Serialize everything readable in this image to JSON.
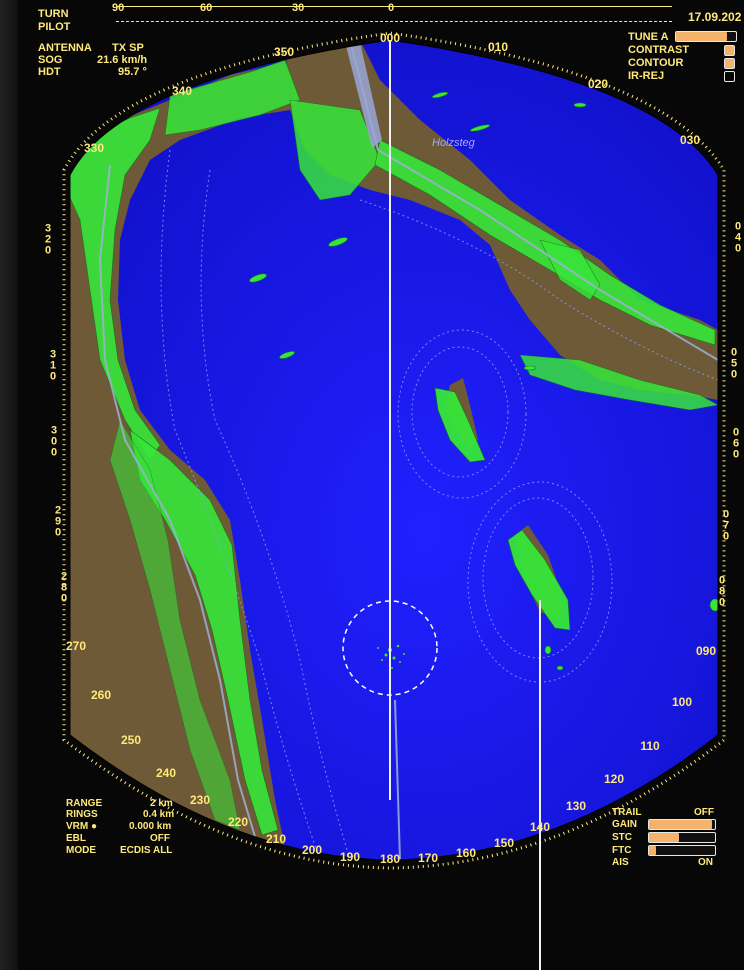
{
  "top_left": {
    "rows": [
      {
        "label": "TURN",
        "value": ""
      },
      {
        "label": "PILOT",
        "value": ""
      },
      {
        "label": "ANTENNA",
        "value": "TX SP"
      },
      {
        "label": "SOG",
        "value": "21.6 km/h"
      },
      {
        "label": "HDT",
        "value": "95.7 °"
      }
    ]
  },
  "turn_scale": {
    "labels": [
      "90",
      "60",
      "30",
      "0"
    ]
  },
  "date": "17.09.202",
  "top_right": {
    "tune_label": "TUNE A",
    "tune_level": 0.85,
    "items": [
      "CONTRAST",
      "CONTOUR",
      "IR-REJ"
    ]
  },
  "bearing_labels": {
    "b000": "000",
    "b010": "010",
    "b020": "020",
    "b030": "030",
    "b040": "0\n4\n0",
    "b050": "0\n5\n0",
    "b060": "0\n6\n0",
    "b070": "0\n7\n0",
    "b080": "0\n8\n0",
    "b090": "090",
    "b100": "100",
    "b110": "110",
    "b120": "120",
    "b130": "130",
    "b140": "140",
    "b150": "150",
    "b160": "160",
    "b170": "170",
    "b180": "180",
    "b190": "190",
    "b200": "200",
    "b210": "210",
    "b220": "220",
    "b230": "230",
    "b240": "240",
    "b250": "250",
    "b260": "260",
    "b270": "270",
    "b280": "2\n8\n0",
    "b290": "2\n9\n0",
    "b300": "3\n0\n0",
    "b310": "3\n1\n0",
    "b320": "3\n2\n0",
    "b330": "330",
    "b340": "340",
    "b350": "350"
  },
  "map_label": "Holzsteg",
  "bottom_left": {
    "rows": [
      {
        "label": "RANGE",
        "value": "2 km"
      },
      {
        "label": "RINGS",
        "value": "0.4 km"
      },
      {
        "label": "VRM ●",
        "value": "0.000 km"
      },
      {
        "label": "EBL",
        "value": "OFF"
      },
      {
        "label": "MODE",
        "value": "ECDIS ALL"
      }
    ]
  },
  "bottom_right": {
    "trail_label": "TRAIL",
    "trail_value": "OFF",
    "gain_label": "GAIN",
    "gain_level": 0.95,
    "stc_label": "STC",
    "stc_level": 0.45,
    "ftc_label": "FTC",
    "ftc_level": 0.1,
    "ais_label": "AIS",
    "ais_value": "ON"
  },
  "colors": {
    "sea": "#1616ee",
    "land": "#6e5a36",
    "echo": "#37e63a",
    "text": "#ffe97a",
    "panel_bg": "#070708"
  }
}
